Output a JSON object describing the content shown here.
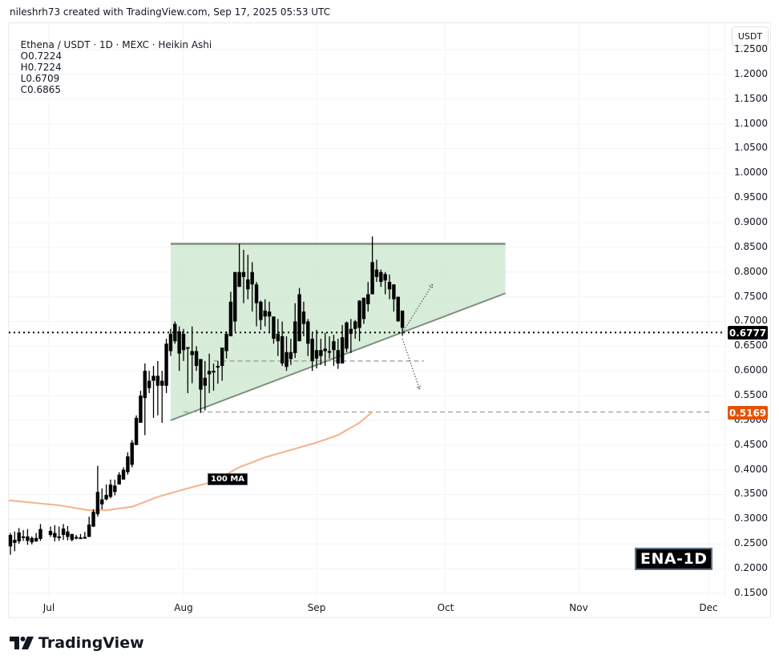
{
  "credit": "nileshrh73 created with TradingView.com, Sep 17, 2025 05:53 UTC",
  "legend": {
    "symbol": "Ethena / USDT · 1D · MEXC · Heikin Ashi",
    "open": "O0.7224",
    "high": "H0.7224",
    "low": "L0.6709",
    "close": "C0.6865"
  },
  "currency_button": "USDT",
  "price_tags": {
    "last": {
      "value": "0.6777",
      "color": "#000000"
    },
    "ma": {
      "value": "0.5169",
      "color": "#e65100"
    }
  },
  "annotations": {
    "ma_label": "100 MA",
    "ticker_label": "ENA-1D"
  },
  "brand": "TradingView",
  "colors": {
    "candle": "#000000",
    "triangle_fill": "#c8e6c9",
    "triangle_line": "#7e8f7e",
    "ma_line": "#f5b08a",
    "dashed_support": "#9e9e9e",
    "grid": "#f0f3fa"
  },
  "chart_data": {
    "type": "candlestick",
    "title": "Ethena / USDT · 1D · MEXC · Heikin Ashi",
    "xlabel": "",
    "ylabel": "USDT",
    "x_ticks": [
      "Jul",
      "Aug",
      "Sep",
      "Oct",
      "Nov",
      "Dec"
    ],
    "y_ticks": [
      "1.2500",
      "1.2000",
      "1.1500",
      "1.1000",
      "1.0500",
      "1.0000",
      "0.9500",
      "0.9000",
      "0.8500",
      "0.8000",
      "0.7500",
      "0.7000",
      "0.6500",
      "0.6000",
      "0.5500",
      "0.5000",
      "0.4500",
      "0.4000",
      "0.3500",
      "0.3000",
      "0.2500",
      "0.2000",
      "0.1500"
    ],
    "ylim": [
      0.15,
      1.25
    ],
    "grid": true,
    "last_price": 0.6777,
    "ma100_value": 0.5169,
    "candles": [
      {
        "d": "Jun 23",
        "o": 0.268,
        "h": 0.272,
        "l": 0.228,
        "c": 0.245
      },
      {
        "d": "Jun 24",
        "o": 0.252,
        "h": 0.275,
        "l": 0.235,
        "c": 0.258
      },
      {
        "d": "Jun 25",
        "o": 0.255,
        "h": 0.282,
        "l": 0.25,
        "c": 0.273
      },
      {
        "d": "Jun 26",
        "o": 0.265,
        "h": 0.278,
        "l": 0.256,
        "c": 0.262
      },
      {
        "d": "Jun 27",
        "o": 0.265,
        "h": 0.28,
        "l": 0.248,
        "c": 0.256
      },
      {
        "d": "Jun 28",
        "o": 0.262,
        "h": 0.265,
        "l": 0.249,
        "c": 0.253
      },
      {
        "d": "Jun 29",
        "o": 0.255,
        "h": 0.272,
        "l": 0.254,
        "c": 0.262
      },
      {
        "d": "Jun 30",
        "o": 0.26,
        "h": 0.29,
        "l": 0.256,
        "c": 0.28
      },
      {
        "d": "Jul 1",
        "o": 0.276,
        "h": 0.285,
        "l": 0.264,
        "c": 0.268
      },
      {
        "d": "Jul 2",
        "o": 0.272,
        "h": 0.288,
        "l": 0.255,
        "c": 0.263
      },
      {
        "d": "Jul 3",
        "o": 0.264,
        "h": 0.285,
        "l": 0.256,
        "c": 0.265
      },
      {
        "d": "Jul 4",
        "o": 0.268,
        "h": 0.29,
        "l": 0.258,
        "c": 0.281
      },
      {
        "d": "Jul 5",
        "o": 0.275,
        "h": 0.286,
        "l": 0.257,
        "c": 0.264
      },
      {
        "d": "Jul 6",
        "o": 0.27,
        "h": 0.27,
        "l": 0.255,
        "c": 0.258
      },
      {
        "d": "Jul 7",
        "o": 0.264,
        "h": 0.268,
        "l": 0.259,
        "c": 0.262
      },
      {
        "d": "Jul 8",
        "o": 0.262,
        "h": 0.27,
        "l": 0.26,
        "c": 0.263
      },
      {
        "d": "Jul 9",
        "o": 0.263,
        "h": 0.274,
        "l": 0.26,
        "c": 0.264
      },
      {
        "d": "Jul 10",
        "o": 0.264,
        "h": 0.305,
        "l": 0.264,
        "c": 0.289
      },
      {
        "d": "Jul 11",
        "o": 0.285,
        "h": 0.32,
        "l": 0.284,
        "c": 0.315
      },
      {
        "d": "Jul 12",
        "o": 0.31,
        "h": 0.408,
        "l": 0.305,
        "c": 0.355
      },
      {
        "d": "Jul 13",
        "o": 0.33,
        "h": 0.362,
        "l": 0.32,
        "c": 0.34
      },
      {
        "d": "Jul 14",
        "o": 0.34,
        "h": 0.37,
        "l": 0.338,
        "c": 0.349
      },
      {
        "d": "Jul 15",
        "o": 0.345,
        "h": 0.38,
        "l": 0.342,
        "c": 0.37
      },
      {
        "d": "Jul 16",
        "o": 0.355,
        "h": 0.38,
        "l": 0.348,
        "c": 0.368
      },
      {
        "d": "Jul 17",
        "o": 0.37,
        "h": 0.395,
        "l": 0.37,
        "c": 0.39
      },
      {
        "d": "Jul 18",
        "o": 0.38,
        "h": 0.405,
        "l": 0.38,
        "c": 0.4
      },
      {
        "d": "Jul 19",
        "o": 0.395,
        "h": 0.435,
        "l": 0.39,
        "c": 0.427
      },
      {
        "d": "Jul 20",
        "o": 0.41,
        "h": 0.46,
        "l": 0.405,
        "c": 0.455
      },
      {
        "d": "Jul 21",
        "o": 0.45,
        "h": 0.51,
        "l": 0.45,
        "c": 0.505
      },
      {
        "d": "Jul 22",
        "o": 0.495,
        "h": 0.56,
        "l": 0.495,
        "c": 0.55
      },
      {
        "d": "Jul 23",
        "o": 0.545,
        "h": 0.615,
        "l": 0.47,
        "c": 0.6
      },
      {
        "d": "Jul 24",
        "o": 0.58,
        "h": 0.6,
        "l": 0.555,
        "c": 0.565
      },
      {
        "d": "Jul 25",
        "o": 0.58,
        "h": 0.61,
        "l": 0.505,
        "c": 0.59
      },
      {
        "d": "Jul 26",
        "o": 0.57,
        "h": 0.62,
        "l": 0.51,
        "c": 0.59
      },
      {
        "d": "Jul 27",
        "o": 0.58,
        "h": 0.6,
        "l": 0.495,
        "c": 0.57
      },
      {
        "d": "Jul 28",
        "o": 0.57,
        "h": 0.665,
        "l": 0.555,
        "c": 0.655
      },
      {
        "d": "Jul 29",
        "o": 0.64,
        "h": 0.685,
        "l": 0.63,
        "c": 0.675
      },
      {
        "d": "Jul 30",
        "o": 0.66,
        "h": 0.7,
        "l": 0.655,
        "c": 0.695
      },
      {
        "d": "Jul 31",
        "o": 0.68,
        "h": 0.69,
        "l": 0.6,
        "c": 0.635
      },
      {
        "d": "Aug 1",
        "o": 0.675,
        "h": 0.685,
        "l": 0.62,
        "c": 0.642
      },
      {
        "d": "Aug 2",
        "o": 0.645,
        "h": 0.645,
        "l": 0.555,
        "c": 0.648
      },
      {
        "d": "Aug 3",
        "o": 0.64,
        "h": 0.69,
        "l": 0.575,
        "c": 0.632
      },
      {
        "d": "Aug 4",
        "o": 0.64,
        "h": 0.65,
        "l": 0.6,
        "c": 0.61
      },
      {
        "d": "Aug 5",
        "o": 0.624,
        "h": 0.62,
        "l": 0.515,
        "c": 0.562
      },
      {
        "d": "Aug 6",
        "o": 0.57,
        "h": 0.62,
        "l": 0.52,
        "c": 0.586
      },
      {
        "d": "Aug 7",
        "o": 0.593,
        "h": 0.635,
        "l": 0.555,
        "c": 0.6
      },
      {
        "d": "Aug 8",
        "o": 0.6,
        "h": 0.615,
        "l": 0.56,
        "c": 0.597
      },
      {
        "d": "Aug 9",
        "o": 0.608,
        "h": 0.62,
        "l": 0.574,
        "c": 0.61
      },
      {
        "d": "Aug 10",
        "o": 0.61,
        "h": 0.645,
        "l": 0.58,
        "c": 0.647
      },
      {
        "d": "Aug 11",
        "o": 0.64,
        "h": 0.68,
        "l": 0.625,
        "c": 0.675
      },
      {
        "d": "Aug 12",
        "o": 0.67,
        "h": 0.76,
        "l": 0.67,
        "c": 0.74
      },
      {
        "d": "Aug 13",
        "o": 0.7,
        "h": 0.8,
        "l": 0.68,
        "c": 0.8
      },
      {
        "d": "Aug 14",
        "o": 0.77,
        "h": 0.857,
        "l": 0.77,
        "c": 0.8
      },
      {
        "d": "Aug 15",
        "o": 0.8,
        "h": 0.845,
        "l": 0.737,
        "c": 0.79
      },
      {
        "d": "Aug 16",
        "o": 0.785,
        "h": 0.835,
        "l": 0.745,
        "c": 0.765
      },
      {
        "d": "Aug 17",
        "o": 0.775,
        "h": 0.82,
        "l": 0.72,
        "c": 0.8
      },
      {
        "d": "Aug 18",
        "o": 0.775,
        "h": 0.78,
        "l": 0.69,
        "c": 0.737
      },
      {
        "d": "Aug 19",
        "o": 0.74,
        "h": 0.742,
        "l": 0.683,
        "c": 0.703
      },
      {
        "d": "Aug 20",
        "o": 0.71,
        "h": 0.745,
        "l": 0.69,
        "c": 0.722
      },
      {
        "d": "Aug 21",
        "o": 0.72,
        "h": 0.74,
        "l": 0.677,
        "c": 0.71
      },
      {
        "d": "Aug 22",
        "o": 0.71,
        "h": 0.708,
        "l": 0.655,
        "c": 0.665
      },
      {
        "d": "Aug 23",
        "o": 0.66,
        "h": 0.705,
        "l": 0.63,
        "c": 0.675
      },
      {
        "d": "Aug 24",
        "o": 0.67,
        "h": 0.7,
        "l": 0.61,
        "c": 0.615
      },
      {
        "d": "Aug 25",
        "o": 0.638,
        "h": 0.67,
        "l": 0.6,
        "c": 0.608
      },
      {
        "d": "Aug 26",
        "o": 0.638,
        "h": 0.665,
        "l": 0.612,
        "c": 0.624
      },
      {
        "d": "Aug 27",
        "o": 0.636,
        "h": 0.737,
        "l": 0.626,
        "c": 0.7
      },
      {
        "d": "Aug 28",
        "o": 0.66,
        "h": 0.768,
        "l": 0.66,
        "c": 0.755
      },
      {
        "d": "Aug 29",
        "o": 0.72,
        "h": 0.74,
        "l": 0.67,
        "c": 0.695
      },
      {
        "d": "Aug 30",
        "o": 0.7,
        "h": 0.705,
        "l": 0.63,
        "c": 0.655
      },
      {
        "d": "Aug 31",
        "o": 0.665,
        "h": 0.677,
        "l": 0.6,
        "c": 0.62
      },
      {
        "d": "Sep 1",
        "o": 0.642,
        "h": 0.683,
        "l": 0.605,
        "c": 0.625
      },
      {
        "d": "Sep 2",
        "o": 0.63,
        "h": 0.665,
        "l": 0.612,
        "c": 0.642
      },
      {
        "d": "Sep 3",
        "o": 0.64,
        "h": 0.677,
        "l": 0.61,
        "c": 0.645
      },
      {
        "d": "Sep 4",
        "o": 0.64,
        "h": 0.67,
        "l": 0.625,
        "c": 0.638
      },
      {
        "d": "Sep 5",
        "o": 0.66,
        "h": 0.673,
        "l": 0.61,
        "c": 0.642
      },
      {
        "d": "Sep 6",
        "o": 0.642,
        "h": 0.665,
        "l": 0.604,
        "c": 0.615
      },
      {
        "d": "Sep 7",
        "o": 0.615,
        "h": 0.693,
        "l": 0.62,
        "c": 0.668
      },
      {
        "d": "Sep 8",
        "o": 0.645,
        "h": 0.7,
        "l": 0.638,
        "c": 0.698
      },
      {
        "d": "Sep 9",
        "o": 0.675,
        "h": 0.705,
        "l": 0.636,
        "c": 0.685
      },
      {
        "d": "Sep 10",
        "o": 0.685,
        "h": 0.703,
        "l": 0.665,
        "c": 0.7
      },
      {
        "d": "Sep 11",
        "o": 0.687,
        "h": 0.743,
        "l": 0.66,
        "c": 0.742
      },
      {
        "d": "Sep 12",
        "o": 0.705,
        "h": 0.748,
        "l": 0.695,
        "c": 0.748
      },
      {
        "d": "Sep 13",
        "o": 0.735,
        "h": 0.78,
        "l": 0.72,
        "c": 0.755
      },
      {
        "d": "Sep 14",
        "o": 0.755,
        "h": 0.872,
        "l": 0.755,
        "c": 0.82
      },
      {
        "d": "Sep 15",
        "o": 0.805,
        "h": 0.825,
        "l": 0.78,
        "c": 0.79
      },
      {
        "d": "Sep 16",
        "o": 0.8,
        "h": 0.805,
        "l": 0.77,
        "c": 0.78
      },
      {
        "d": "Sep 17",
        "o": 0.796,
        "h": 0.8,
        "l": 0.755,
        "c": 0.783
      },
      {
        "d": "Sep 18",
        "o": 0.78,
        "h": 0.795,
        "l": 0.745,
        "c": 0.765
      },
      {
        "d": "Sep 19",
        "o": 0.775,
        "h": 0.775,
        "l": 0.72,
        "c": 0.745
      },
      {
        "d": "Sep 20",
        "o": 0.75,
        "h": 0.75,
        "l": 0.7,
        "c": 0.7
      },
      {
        "d": "Sep 21",
        "o": 0.722,
        "h": 0.722,
        "l": 0.671,
        "c": 0.687
      }
    ],
    "ma100": [
      {
        "d": "Jun 23",
        "v": 0.338
      },
      {
        "d": "Jul 3",
        "v": 0.328
      },
      {
        "d": "Jul 10",
        "v": 0.318
      },
      {
        "d": "Jul 14",
        "v": 0.318
      },
      {
        "d": "Jul 20",
        "v": 0.325
      },
      {
        "d": "Jul 26",
        "v": 0.345
      },
      {
        "d": "Aug 1",
        "v": 0.36
      },
      {
        "d": "Aug 8",
        "v": 0.376
      },
      {
        "d": "Aug 14",
        "v": 0.405
      },
      {
        "d": "Aug 20",
        "v": 0.425
      },
      {
        "d": "Aug 26",
        "v": 0.44
      },
      {
        "d": "Sep 1",
        "v": 0.455
      },
      {
        "d": "Sep 6",
        "v": 0.47
      },
      {
        "d": "Sep 11",
        "v": 0.495
      },
      {
        "d": "Sep 14",
        "v": 0.517
      }
    ],
    "patterns": {
      "ascending_triangle": {
        "resistance": {
          "from": "Jul 29",
          "to": "Oct 15",
          "value": 0.857
        },
        "support": {
          "from": {
            "d": "Jul 29",
            "v": 0.5
          },
          "to": {
            "d": "Oct 15",
            "v": 0.757
          }
        }
      },
      "dashed_levels": [
        {
          "from": "Aug 8",
          "to": "Sep 26",
          "value": 0.62
        },
        {
          "from": "Aug 1",
          "to": "Dec 2",
          "value": 0.5169
        }
      ],
      "projection_arrows": [
        {
          "from": {
            "d": "Sep 21",
            "v": 0.677
          },
          "to": {
            "d": "Sep 28",
            "v": 0.775
          },
          "direction": "up"
        },
        {
          "from": {
            "d": "Sep 21",
            "v": 0.665
          },
          "to": {
            "d": "Sep 25",
            "v": 0.563
          },
          "direction": "down"
        }
      ]
    }
  }
}
